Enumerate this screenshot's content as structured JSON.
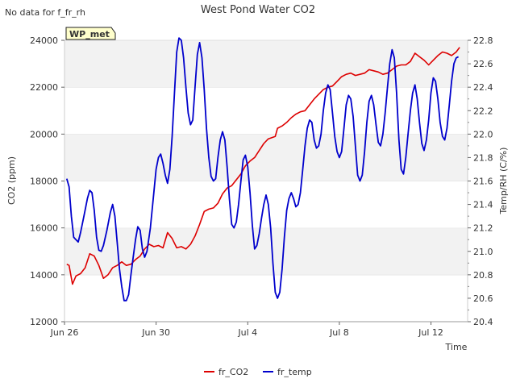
{
  "chart_data": {
    "type": "line",
    "title": "West Pond Water CO2",
    "corner_note": "No data for f_fr_rh",
    "site_badge": "WP_met",
    "xlabel": "Time",
    "ylabel_left": "CO2 (ppm)",
    "ylabel_right": "Temp/RH (C/%)",
    "x_ticks": [
      {
        "day": 0,
        "label": "Jun 26"
      },
      {
        "day": 4,
        "label": "Jun 30"
      },
      {
        "day": 8,
        "label": "Jul 4"
      },
      {
        "day": 12,
        "label": "Jul 8"
      },
      {
        "day": 16,
        "label": "Jul 12"
      }
    ],
    "xlim_day": [
      0,
      17.6
    ],
    "ylim_left": [
      12000,
      24000
    ],
    "yticks_left": [
      "12000",
      "14000",
      "16000",
      "18000",
      "20000",
      "22000",
      "24000"
    ],
    "ylim_right": [
      20.4,
      22.8
    ],
    "yticks_right": [
      "20.4",
      "20.6",
      "20.8",
      "21.0",
      "21.2",
      "21.4",
      "21.6",
      "21.8",
      "22.0",
      "22.2",
      "22.4",
      "22.6",
      "22.8"
    ],
    "grid": true,
    "legend": "bottom-center",
    "series": [
      {
        "name": "fr_CO2",
        "axis": "left",
        "color": "#dd0000",
        "points": [
          [
            0.1,
            14450
          ],
          [
            0.2,
            14400
          ],
          [
            0.35,
            13600
          ],
          [
            0.5,
            13950
          ],
          [
            0.7,
            14050
          ],
          [
            0.9,
            14300
          ],
          [
            1.1,
            14900
          ],
          [
            1.3,
            14800
          ],
          [
            1.5,
            14400
          ],
          [
            1.7,
            13850
          ],
          [
            1.9,
            14000
          ],
          [
            2.1,
            14300
          ],
          [
            2.3,
            14400
          ],
          [
            2.5,
            14550
          ],
          [
            2.7,
            14400
          ],
          [
            2.9,
            14450
          ],
          [
            3.1,
            14650
          ],
          [
            3.3,
            14800
          ],
          [
            3.5,
            15100
          ],
          [
            3.7,
            15300
          ],
          [
            3.9,
            15200
          ],
          [
            4.1,
            15250
          ],
          [
            4.3,
            15150
          ],
          [
            4.5,
            15800
          ],
          [
            4.7,
            15550
          ],
          [
            4.9,
            15150
          ],
          [
            5.1,
            15200
          ],
          [
            5.3,
            15100
          ],
          [
            5.5,
            15300
          ],
          [
            5.7,
            15650
          ],
          [
            5.9,
            16150
          ],
          [
            6.1,
            16700
          ],
          [
            6.3,
            16800
          ],
          [
            6.5,
            16850
          ],
          [
            6.7,
            17050
          ],
          [
            6.9,
            17450
          ],
          [
            7.1,
            17700
          ],
          [
            7.3,
            17800
          ],
          [
            7.5,
            18050
          ],
          [
            7.7,
            18300
          ],
          [
            7.9,
            18650
          ],
          [
            8.1,
            18850
          ],
          [
            8.3,
            19000
          ],
          [
            8.5,
            19300
          ],
          [
            8.7,
            19600
          ],
          [
            8.9,
            19800
          ],
          [
            9.2,
            19900
          ],
          [
            9.3,
            20250
          ],
          [
            9.5,
            20350
          ],
          [
            9.7,
            20500
          ],
          [
            9.9,
            20700
          ],
          [
            10.1,
            20850
          ],
          [
            10.3,
            20950
          ],
          [
            10.5,
            21000
          ],
          [
            10.7,
            21250
          ],
          [
            10.9,
            21500
          ],
          [
            11.1,
            21700
          ],
          [
            11.3,
            21900
          ],
          [
            11.5,
            22000
          ],
          [
            11.7,
            22050
          ],
          [
            11.9,
            22250
          ],
          [
            12.1,
            22450
          ],
          [
            12.3,
            22550
          ],
          [
            12.5,
            22600
          ],
          [
            12.7,
            22500
          ],
          [
            12.9,
            22550
          ],
          [
            13.1,
            22600
          ],
          [
            13.3,
            22750
          ],
          [
            13.5,
            22700
          ],
          [
            13.7,
            22650
          ],
          [
            13.9,
            22550
          ],
          [
            14.1,
            22600
          ],
          [
            14.3,
            22750
          ],
          [
            14.5,
            22900
          ],
          [
            14.7,
            22950
          ],
          [
            14.9,
            22950
          ],
          [
            15.1,
            23100
          ],
          [
            15.3,
            23450
          ],
          [
            15.5,
            23300
          ],
          [
            15.7,
            23150
          ],
          [
            15.9,
            22950
          ],
          [
            16.1,
            23150
          ],
          [
            16.3,
            23350
          ],
          [
            16.5,
            23500
          ],
          [
            16.7,
            23450
          ],
          [
            16.9,
            23350
          ],
          [
            17.1,
            23500
          ],
          [
            17.25,
            23700
          ]
        ]
      },
      {
        "name": "fr_temp",
        "axis": "right",
        "color": "#0000cc",
        "points": [
          [
            0.1,
            21.62
          ],
          [
            0.2,
            21.55
          ],
          [
            0.3,
            21.3
          ],
          [
            0.4,
            21.12
          ],
          [
            0.5,
            21.1
          ],
          [
            0.6,
            21.08
          ],
          [
            0.7,
            21.16
          ],
          [
            0.85,
            21.3
          ],
          [
            1.0,
            21.45
          ],
          [
            1.1,
            21.52
          ],
          [
            1.2,
            21.5
          ],
          [
            1.3,
            21.35
          ],
          [
            1.4,
            21.12
          ],
          [
            1.5,
            21.01
          ],
          [
            1.6,
            21.0
          ],
          [
            1.7,
            21.05
          ],
          [
            1.85,
            21.18
          ],
          [
            2.0,
            21.33
          ],
          [
            2.1,
            21.4
          ],
          [
            2.2,
            21.3
          ],
          [
            2.3,
            21.08
          ],
          [
            2.4,
            20.85
          ],
          [
            2.5,
            20.7
          ],
          [
            2.6,
            20.58
          ],
          [
            2.7,
            20.58
          ],
          [
            2.8,
            20.63
          ],
          [
            2.9,
            20.8
          ],
          [
            3.0,
            20.95
          ],
          [
            3.1,
            21.1
          ],
          [
            3.2,
            21.21
          ],
          [
            3.3,
            21.18
          ],
          [
            3.4,
            21.02
          ],
          [
            3.5,
            20.95
          ],
          [
            3.6,
            21.0
          ],
          [
            3.75,
            21.2
          ],
          [
            3.9,
            21.5
          ],
          [
            4.0,
            21.7
          ],
          [
            4.1,
            21.8
          ],
          [
            4.2,
            21.83
          ],
          [
            4.3,
            21.75
          ],
          [
            4.4,
            21.65
          ],
          [
            4.5,
            21.58
          ],
          [
            4.6,
            21.7
          ],
          [
            4.7,
            21.98
          ],
          [
            4.8,
            22.35
          ],
          [
            4.9,
            22.7
          ],
          [
            5.0,
            22.82
          ],
          [
            5.1,
            22.8
          ],
          [
            5.2,
            22.65
          ],
          [
            5.3,
            22.4
          ],
          [
            5.4,
            22.18
          ],
          [
            5.5,
            22.08
          ],
          [
            5.6,
            22.12
          ],
          [
            5.7,
            22.4
          ],
          [
            5.8,
            22.68
          ],
          [
            5.9,
            22.78
          ],
          [
            6.0,
            22.65
          ],
          [
            6.1,
            22.38
          ],
          [
            6.2,
            22.05
          ],
          [
            6.3,
            21.8
          ],
          [
            6.4,
            21.64
          ],
          [
            6.5,
            21.6
          ],
          [
            6.6,
            21.62
          ],
          [
            6.7,
            21.8
          ],
          [
            6.8,
            21.95
          ],
          [
            6.9,
            22.02
          ],
          [
            7.0,
            21.95
          ],
          [
            7.1,
            21.72
          ],
          [
            7.2,
            21.45
          ],
          [
            7.3,
            21.23
          ],
          [
            7.4,
            21.2
          ],
          [
            7.5,
            21.25
          ],
          [
            7.6,
            21.4
          ],
          [
            7.7,
            21.6
          ],
          [
            7.8,
            21.78
          ],
          [
            7.9,
            21.82
          ],
          [
            8.0,
            21.72
          ],
          [
            8.1,
            21.5
          ],
          [
            8.2,
            21.22
          ],
          [
            8.3,
            21.02
          ],
          [
            8.4,
            21.05
          ],
          [
            8.5,
            21.15
          ],
          [
            8.6,
            21.28
          ],
          [
            8.7,
            21.4
          ],
          [
            8.8,
            21.48
          ],
          [
            8.9,
            21.4
          ],
          [
            9.0,
            21.2
          ],
          [
            9.1,
            20.9
          ],
          [
            9.2,
            20.65
          ],
          [
            9.3,
            20.6
          ],
          [
            9.4,
            20.65
          ],
          [
            9.5,
            20.85
          ],
          [
            9.6,
            21.12
          ],
          [
            9.7,
            21.35
          ],
          [
            9.8,
            21.45
          ],
          [
            9.9,
            21.5
          ],
          [
            10.0,
            21.45
          ],
          [
            10.1,
            21.38
          ],
          [
            10.2,
            21.4
          ],
          [
            10.3,
            21.5
          ],
          [
            10.4,
            21.7
          ],
          [
            10.5,
            21.9
          ],
          [
            10.6,
            22.05
          ],
          [
            10.7,
            22.12
          ],
          [
            10.8,
            22.1
          ],
          [
            10.9,
            21.95
          ],
          [
            11.0,
            21.88
          ],
          [
            11.1,
            21.9
          ],
          [
            11.2,
            22.0
          ],
          [
            11.3,
            22.2
          ],
          [
            11.4,
            22.35
          ],
          [
            11.5,
            22.42
          ],
          [
            11.6,
            22.38
          ],
          [
            11.7,
            22.18
          ],
          [
            11.8,
            21.98
          ],
          [
            11.9,
            21.85
          ],
          [
            12.0,
            21.8
          ],
          [
            12.1,
            21.85
          ],
          [
            12.2,
            22.05
          ],
          [
            12.3,
            22.25
          ],
          [
            12.4,
            22.33
          ],
          [
            12.5,
            22.3
          ],
          [
            12.6,
            22.15
          ],
          [
            12.7,
            21.9
          ],
          [
            12.8,
            21.65
          ],
          [
            12.9,
            21.6
          ],
          [
            13.0,
            21.65
          ],
          [
            13.1,
            21.85
          ],
          [
            13.2,
            22.1
          ],
          [
            13.3,
            22.28
          ],
          [
            13.4,
            22.33
          ],
          [
            13.5,
            22.25
          ],
          [
            13.6,
            22.08
          ],
          [
            13.7,
            21.93
          ],
          [
            13.8,
            21.9
          ],
          [
            13.9,
            22.0
          ],
          [
            14.0,
            22.18
          ],
          [
            14.1,
            22.4
          ],
          [
            14.2,
            22.6
          ],
          [
            14.3,
            22.72
          ],
          [
            14.4,
            22.65
          ],
          [
            14.5,
            22.35
          ],
          [
            14.6,
            21.95
          ],
          [
            14.7,
            21.7
          ],
          [
            14.8,
            21.66
          ],
          [
            14.9,
            21.8
          ],
          [
            15.0,
            22.0
          ],
          [
            15.1,
            22.2
          ],
          [
            15.2,
            22.35
          ],
          [
            15.3,
            22.42
          ],
          [
            15.4,
            22.3
          ],
          [
            15.5,
            22.1
          ],
          [
            15.6,
            21.92
          ],
          [
            15.7,
            21.86
          ],
          [
            15.8,
            21.95
          ],
          [
            15.9,
            22.12
          ],
          [
            16.0,
            22.35
          ],
          [
            16.1,
            22.48
          ],
          [
            16.2,
            22.45
          ],
          [
            16.3,
            22.3
          ],
          [
            16.4,
            22.1
          ],
          [
            16.5,
            21.98
          ],
          [
            16.6,
            21.95
          ],
          [
            16.7,
            22.05
          ],
          [
            16.8,
            22.25
          ],
          [
            16.9,
            22.45
          ],
          [
            17.0,
            22.6
          ],
          [
            17.1,
            22.65
          ],
          [
            17.2,
            22.66
          ]
        ]
      }
    ]
  }
}
